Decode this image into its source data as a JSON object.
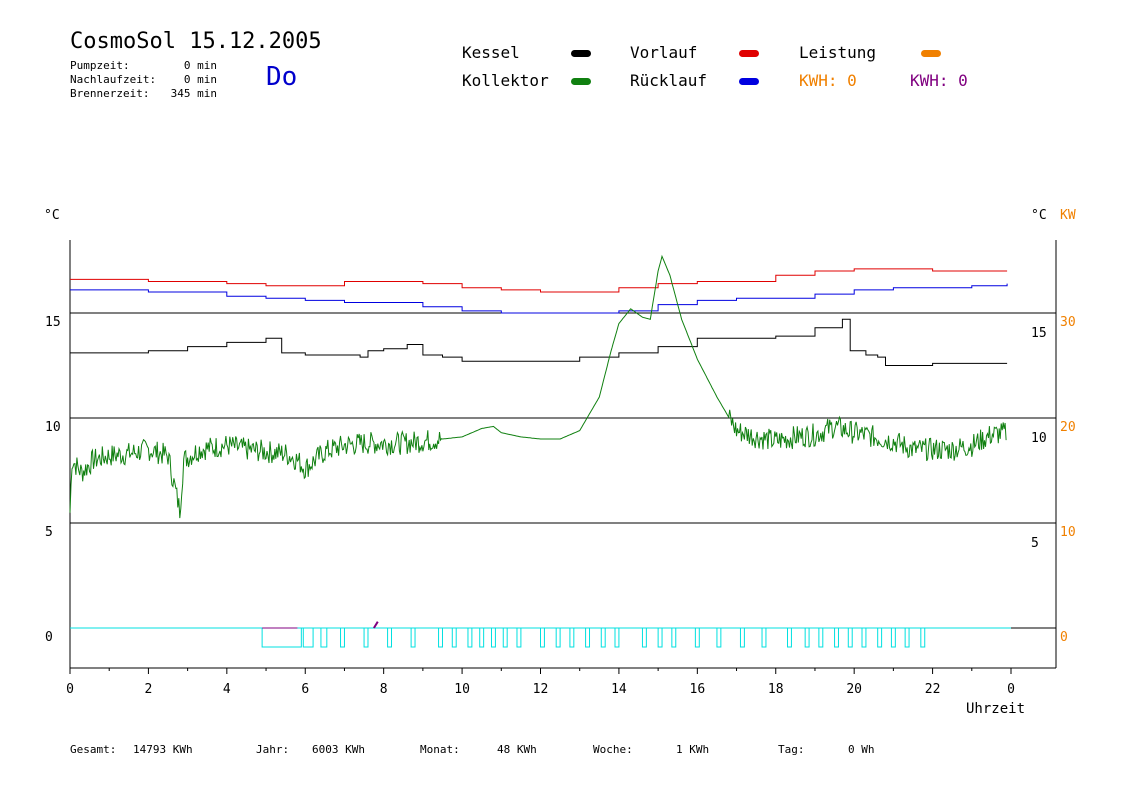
{
  "header": {
    "title": "CosmoSol 15.12.2005",
    "stats": [
      {
        "label": "Pumpzeit:",
        "value": "0 min"
      },
      {
        "label": "Nachlaufzeit:",
        "value": "0 min"
      },
      {
        "label": "Brennerzeit:",
        "value": "345 min"
      }
    ],
    "day": "Do"
  },
  "legend": {
    "kessel": "Kessel",
    "vorlauf": "Vorlauf",
    "leistung": "Leistung",
    "kollektor": "Kollektor",
    "ruecklauf": "Rücklauf",
    "kwh1": "KWH: 0",
    "kwh2": "KWH: 0",
    "colors": {
      "kessel": "#000000",
      "vorlauf": "#e00000",
      "leistung": "#f08000",
      "kollektor": "#108010",
      "ruecklauf": "#0000e0",
      "kwh2": "#800080",
      "pump": "#00e0e0"
    }
  },
  "footer": {
    "gesamt_label": "Gesamt:",
    "gesamt_value": "14793 KWh",
    "jahr_label": "Jahr:",
    "jahr_value": "6003 KWh",
    "monat_label": "Monat:",
    "monat_value": "48 KWh",
    "woche_label": "Woche:",
    "woche_value": "1 KWh",
    "tag_label": "Tag:",
    "tag_value": "0 Wh"
  },
  "chart_data": {
    "type": "line",
    "xlabel": "Uhrzeit",
    "ylabel_left": "°C",
    "ylabel_right": "°C",
    "ylabel_right2": "KW",
    "xticks": [
      "0",
      "2",
      "4",
      "6",
      "8",
      "10",
      "12",
      "14",
      "16",
      "18",
      "20",
      "22",
      "0"
    ],
    "yticks_left": [
      "15",
      "10",
      "5",
      "0"
    ],
    "yticks_right_temp": [
      "15",
      "10",
      "5"
    ],
    "yticks_right_kw": [
      "30",
      "20",
      "10",
      "0"
    ],
    "xlim": [
      0,
      24
    ],
    "ylim": [
      -1.9,
      18.5
    ],
    "grid": true,
    "series": [
      {
        "name": "Vorlauf",
        "color": "#e00000",
        "points": [
          [
            0,
            16.6
          ],
          [
            2,
            16.5
          ],
          [
            4,
            16.4
          ],
          [
            5,
            16.3
          ],
          [
            6,
            16.3
          ],
          [
            7,
            16.5
          ],
          [
            8,
            16.5
          ],
          [
            9,
            16.4
          ],
          [
            10,
            16.2
          ],
          [
            11,
            16.1
          ],
          [
            12,
            16.0
          ],
          [
            13,
            16.0
          ],
          [
            14,
            16.2
          ],
          [
            15,
            16.4
          ],
          [
            16,
            16.5
          ],
          [
            17,
            16.5
          ],
          [
            18,
            16.8
          ],
          [
            19,
            17.0
          ],
          [
            20,
            17.1
          ],
          [
            21,
            17.1
          ],
          [
            22,
            17.0
          ],
          [
            23,
            17.0
          ],
          [
            23.9,
            17.0
          ]
        ]
      },
      {
        "name": "Rücklauf",
        "color": "#0000e0",
        "points": [
          [
            0,
            16.1
          ],
          [
            2,
            16.0
          ],
          [
            4,
            15.8
          ],
          [
            5,
            15.7
          ],
          [
            6,
            15.6
          ],
          [
            7,
            15.5
          ],
          [
            8,
            15.5
          ],
          [
            9,
            15.3
          ],
          [
            10,
            15.1
          ],
          [
            11,
            15.0
          ],
          [
            12,
            15.0
          ],
          [
            13,
            15.0
          ],
          [
            14,
            15.1
          ],
          [
            15,
            15.4
          ],
          [
            16,
            15.6
          ],
          [
            17,
            15.7
          ],
          [
            18,
            15.7
          ],
          [
            19,
            15.9
          ],
          [
            20,
            16.1
          ],
          [
            21,
            16.2
          ],
          [
            22,
            16.2
          ],
          [
            23,
            16.3
          ],
          [
            23.9,
            16.4
          ]
        ]
      },
      {
        "name": "Kessel",
        "color": "#000000",
        "points": [
          [
            0,
            13.1
          ],
          [
            1,
            13.1
          ],
          [
            2,
            13.2
          ],
          [
            3,
            13.4
          ],
          [
            4,
            13.6
          ],
          [
            5,
            13.8
          ],
          [
            5.3,
            13.8
          ],
          [
            5.4,
            13.1
          ],
          [
            6,
            13.0
          ],
          [
            7,
            13.0
          ],
          [
            7.4,
            12.9
          ],
          [
            7.6,
            13.2
          ],
          [
            8,
            13.3
          ],
          [
            8.6,
            13.5
          ],
          [
            9,
            13.0
          ],
          [
            9.5,
            12.9
          ],
          [
            10,
            12.7
          ],
          [
            11,
            12.7
          ],
          [
            12,
            12.7
          ],
          [
            13,
            12.9
          ],
          [
            14,
            13.1
          ],
          [
            15,
            13.4
          ],
          [
            16,
            13.8
          ],
          [
            17,
            13.8
          ],
          [
            18,
            13.9
          ],
          [
            19,
            14.3
          ],
          [
            19.7,
            14.7
          ],
          [
            19.9,
            13.2
          ],
          [
            20.3,
            13.0
          ],
          [
            20.6,
            12.9
          ],
          [
            20.8,
            12.5
          ],
          [
            21.5,
            12.5
          ],
          [
            22,
            12.6
          ],
          [
            23,
            12.6
          ],
          [
            23.9,
            12.6
          ]
        ]
      },
      {
        "name": "Kollektor",
        "color": "#108010",
        "points": [
          [
            0,
            5.5
          ],
          [
            0.05,
            8.0
          ],
          [
            0.3,
            7.4
          ],
          [
            0.6,
            8.0
          ],
          [
            1,
            8.2
          ],
          [
            1.5,
            8.3
          ],
          [
            2,
            8.5
          ],
          [
            2.5,
            8.2
          ],
          [
            2.8,
            5.6
          ],
          [
            2.9,
            8.0
          ],
          [
            3.3,
            8.5
          ],
          [
            4,
            8.7
          ],
          [
            4.5,
            8.5
          ],
          [
            5,
            8.4
          ],
          [
            5.5,
            8.3
          ],
          [
            5.8,
            8.0
          ],
          [
            6,
            7.6
          ],
          [
            6.5,
            8.4
          ],
          [
            7,
            8.7
          ],
          [
            7.5,
            8.8
          ],
          [
            8,
            8.8
          ],
          [
            8.5,
            8.8
          ],
          [
            9,
            8.9
          ],
          [
            9.5,
            9.0
          ],
          [
            10,
            9.1
          ],
          [
            10.5,
            9.5
          ],
          [
            10.8,
            9.6
          ],
          [
            11,
            9.3
          ],
          [
            11.5,
            9.1
          ],
          [
            12,
            9.0
          ],
          [
            12.5,
            9.0
          ],
          [
            13,
            9.4
          ],
          [
            13.5,
            11.0
          ],
          [
            13.8,
            13.2
          ],
          [
            14,
            14.5
          ],
          [
            14.3,
            15.2
          ],
          [
            14.6,
            14.8
          ],
          [
            14.8,
            14.7
          ],
          [
            15,
            17.0
          ],
          [
            15.1,
            17.7
          ],
          [
            15.3,
            16.8
          ],
          [
            15.6,
            14.7
          ],
          [
            16,
            12.8
          ],
          [
            16.5,
            11.0
          ],
          [
            17,
            9.4
          ],
          [
            17.5,
            9.1
          ],
          [
            18,
            8.9
          ],
          [
            18.5,
            9.1
          ],
          [
            19,
            9.2
          ],
          [
            19.5,
            9.6
          ],
          [
            20,
            9.3
          ],
          [
            20.5,
            9.1
          ],
          [
            21,
            8.9
          ],
          [
            21.5,
            8.5
          ],
          [
            22,
            8.5
          ],
          [
            22.5,
            8.5
          ],
          [
            23,
            8.7
          ],
          [
            23.5,
            9.2
          ],
          [
            23.9,
            9.3
          ]
        ]
      }
    ],
    "pump_on_hours": [
      [
        4.9,
        5.9
      ],
      [
        5.95,
        6.2
      ],
      [
        6.4,
        6.55
      ],
      [
        6.9,
        7.0
      ],
      [
        7.5,
        7.6
      ],
      [
        8.1,
        8.2
      ],
      [
        8.7,
        8.8
      ],
      [
        9.4,
        9.5
      ],
      [
        9.75,
        9.85
      ],
      [
        10.15,
        10.25
      ],
      [
        10.45,
        10.55
      ],
      [
        10.75,
        10.85
      ],
      [
        11.05,
        11.15
      ],
      [
        11.4,
        11.5
      ],
      [
        12.0,
        12.1
      ],
      [
        12.4,
        12.5
      ],
      [
        12.75,
        12.85
      ],
      [
        13.15,
        13.25
      ],
      [
        13.55,
        13.65
      ],
      [
        13.9,
        14.0
      ],
      [
        14.6,
        14.7
      ],
      [
        15.0,
        15.1
      ],
      [
        15.35,
        15.45
      ],
      [
        15.95,
        16.05
      ],
      [
        16.5,
        16.6
      ],
      [
        17.1,
        17.2
      ],
      [
        17.65,
        17.75
      ],
      [
        18.3,
        18.4
      ],
      [
        18.75,
        18.85
      ],
      [
        19.1,
        19.2
      ],
      [
        19.5,
        19.6
      ],
      [
        19.85,
        19.95
      ],
      [
        20.2,
        20.3
      ],
      [
        20.6,
        20.7
      ],
      [
        20.95,
        21.05
      ],
      [
        21.3,
        21.4
      ],
      [
        21.7,
        21.8
      ]
    ]
  }
}
